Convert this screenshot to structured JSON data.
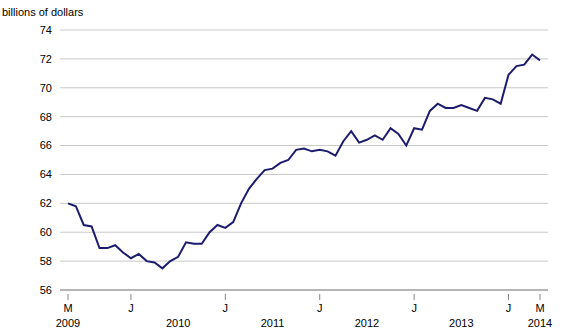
{
  "chart_data": {
    "type": "line",
    "y_label": "billions of dollars",
    "categories": [
      "M",
      null,
      null,
      null,
      null,
      null,
      null,
      null,
      "J",
      null,
      null,
      null,
      null,
      null,
      null,
      null,
      null,
      null,
      null,
      null,
      "J",
      null,
      null,
      null,
      null,
      null,
      null,
      null,
      null,
      null,
      null,
      null,
      "J",
      null,
      null,
      null,
      null,
      null,
      null,
      null,
      null,
      null,
      null,
      null,
      "J",
      null,
      null,
      null,
      null,
      null,
      null,
      null,
      null,
      null,
      null,
      null,
      "J",
      null,
      null,
      null,
      "M"
    ],
    "year_labels": [
      "2009",
      null,
      null,
      null,
      null,
      null,
      null,
      null,
      null,
      null,
      null,
      null,
      null,
      null,
      "2010",
      null,
      null,
      null,
      null,
      null,
      null,
      null,
      null,
      null,
      null,
      null,
      "2011",
      null,
      null,
      null,
      null,
      null,
      null,
      null,
      null,
      null,
      null,
      null,
      "2012",
      null,
      null,
      null,
      null,
      null,
      null,
      null,
      null,
      null,
      null,
      null,
      "2013",
      null,
      null,
      null,
      null,
      null,
      null,
      null,
      null,
      null,
      "2014"
    ],
    "values": [
      62.0,
      61.8,
      60.5,
      60.4,
      58.9,
      58.9,
      59.1,
      58.6,
      58.2,
      58.5,
      58.0,
      57.9,
      57.5,
      58.0,
      58.3,
      59.3,
      59.2,
      59.2,
      60.0,
      60.5,
      60.3,
      60.7,
      62.0,
      63.0,
      63.7,
      64.3,
      64.4,
      64.8,
      65.0,
      65.7,
      65.8,
      65.6,
      65.7,
      65.6,
      65.3,
      66.3,
      67.0,
      66.2,
      66.4,
      66.7,
      66.4,
      67.2,
      66.8,
      66.0,
      67.2,
      67.1,
      68.4,
      68.9,
      68.6,
      68.6,
      68.8,
      68.6,
      68.4,
      69.3,
      69.2,
      68.9,
      70.9,
      71.5,
      71.6,
      72.3,
      71.9
    ],
    "color": "#1c1c6e",
    "ylim": [
      56,
      74
    ],
    "yticks": [
      56,
      58,
      60,
      62,
      64,
      66,
      68,
      70,
      72,
      74
    ],
    "grid": true
  }
}
